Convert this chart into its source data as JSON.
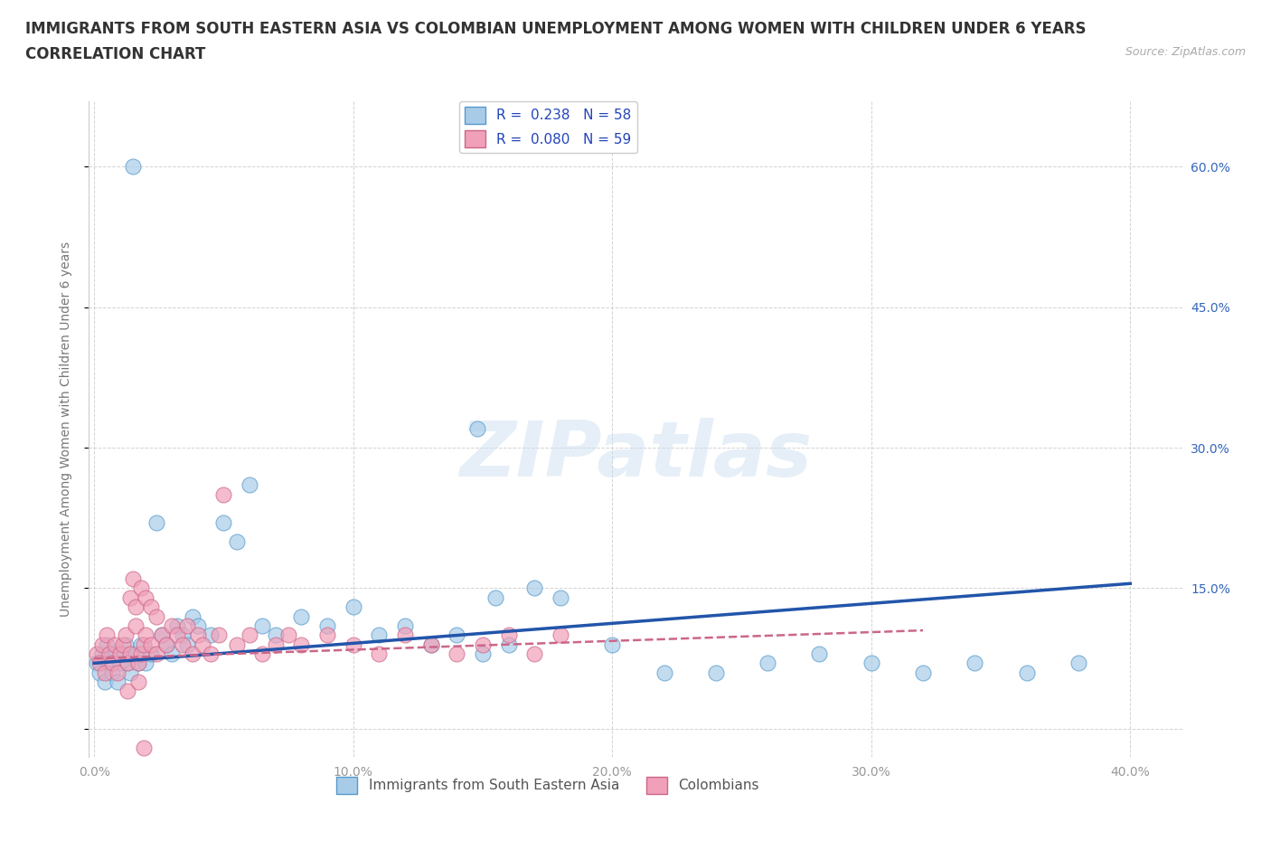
{
  "title_line1": "IMMIGRANTS FROM SOUTH EASTERN ASIA VS COLOMBIAN UNEMPLOYMENT AMONG WOMEN WITH CHILDREN UNDER 6 YEARS",
  "title_line2": "CORRELATION CHART",
  "source_text": "Source: ZipAtlas.com",
  "ylabel": "Unemployment Among Women with Children Under 6 years",
  "xlim": [
    -0.002,
    0.42
  ],
  "ylim": [
    -0.03,
    0.67
  ],
  "xticks": [
    0.0,
    0.1,
    0.2,
    0.3,
    0.4
  ],
  "xticklabels": [
    "0.0%",
    "10.0%",
    "20.0%",
    "30.0%",
    "40.0%"
  ],
  "yticks": [
    0.0,
    0.15,
    0.3,
    0.45,
    0.6
  ],
  "right_yticklabels": [
    "",
    "15.0%",
    "30.0%",
    "45.0%",
    "60.0%"
  ],
  "series1_color": "#a8cce8",
  "series1_edgecolor": "#5599cc",
  "series2_color": "#f0a0b8",
  "series2_edgecolor": "#cc6688",
  "trend1_color": "#2255aa",
  "trend2_color": "#cc6688",
  "R1": 0.238,
  "N1": 58,
  "R2": 0.08,
  "N2": 59,
  "watermark": "ZIPatlas",
  "background_color": "#ffffff",
  "grid_color": "#c8c8c8",
  "title_fontsize": 12,
  "axis_label_fontsize": 10,
  "tick_fontsize": 10,
  "legend_fontsize": 11,
  "series1_x": [
    0.001,
    0.002,
    0.003,
    0.004,
    0.005,
    0.006,
    0.007,
    0.008,
    0.009,
    0.01,
    0.011,
    0.012,
    0.013,
    0.014,
    0.015,
    0.016,
    0.017,
    0.018,
    0.02,
    0.022,
    0.024,
    0.026,
    0.028,
    0.03,
    0.032,
    0.034,
    0.036,
    0.038,
    0.04,
    0.045,
    0.05,
    0.055,
    0.06,
    0.065,
    0.07,
    0.08,
    0.09,
    0.1,
    0.11,
    0.12,
    0.13,
    0.14,
    0.15,
    0.16,
    0.18,
    0.2,
    0.22,
    0.24,
    0.26,
    0.28,
    0.3,
    0.32,
    0.34,
    0.36,
    0.38,
    0.155,
    0.17,
    0.148
  ],
  "series1_y": [
    0.07,
    0.06,
    0.08,
    0.05,
    0.09,
    0.07,
    0.06,
    0.08,
    0.05,
    0.07,
    0.08,
    0.09,
    0.07,
    0.06,
    0.6,
    0.08,
    0.07,
    0.09,
    0.07,
    0.08,
    0.22,
    0.1,
    0.09,
    0.08,
    0.11,
    0.1,
    0.09,
    0.12,
    0.11,
    0.1,
    0.22,
    0.2,
    0.26,
    0.11,
    0.1,
    0.12,
    0.11,
    0.13,
    0.1,
    0.11,
    0.09,
    0.1,
    0.08,
    0.09,
    0.14,
    0.09,
    0.06,
    0.06,
    0.07,
    0.08,
    0.07,
    0.06,
    0.07,
    0.06,
    0.07,
    0.14,
    0.15,
    0.32
  ],
  "series2_x": [
    0.001,
    0.002,
    0.003,
    0.004,
    0.005,
    0.006,
    0.007,
    0.008,
    0.009,
    0.01,
    0.011,
    0.012,
    0.013,
    0.014,
    0.015,
    0.016,
    0.017,
    0.018,
    0.019,
    0.02,
    0.022,
    0.024,
    0.026,
    0.028,
    0.03,
    0.032,
    0.034,
    0.036,
    0.038,
    0.04,
    0.042,
    0.045,
    0.048,
    0.05,
    0.055,
    0.06,
    0.065,
    0.07,
    0.075,
    0.08,
    0.09,
    0.1,
    0.11,
    0.12,
    0.13,
    0.14,
    0.15,
    0.16,
    0.17,
    0.18,
    0.014,
    0.016,
    0.018,
    0.02,
    0.022,
    0.024,
    0.013,
    0.017,
    0.019
  ],
  "series2_y": [
    0.08,
    0.07,
    0.09,
    0.06,
    0.1,
    0.08,
    0.07,
    0.09,
    0.06,
    0.08,
    0.09,
    0.1,
    0.07,
    0.08,
    0.16,
    0.11,
    0.07,
    0.08,
    0.09,
    0.1,
    0.09,
    0.08,
    0.1,
    0.09,
    0.11,
    0.1,
    0.09,
    0.11,
    0.08,
    0.1,
    0.09,
    0.08,
    0.1,
    0.25,
    0.09,
    0.1,
    0.08,
    0.09,
    0.1,
    0.09,
    0.1,
    0.09,
    0.08,
    0.1,
    0.09,
    0.08,
    0.09,
    0.1,
    0.08,
    0.1,
    0.14,
    0.13,
    0.15,
    0.14,
    0.13,
    0.12,
    0.04,
    0.05,
    -0.02
  ]
}
